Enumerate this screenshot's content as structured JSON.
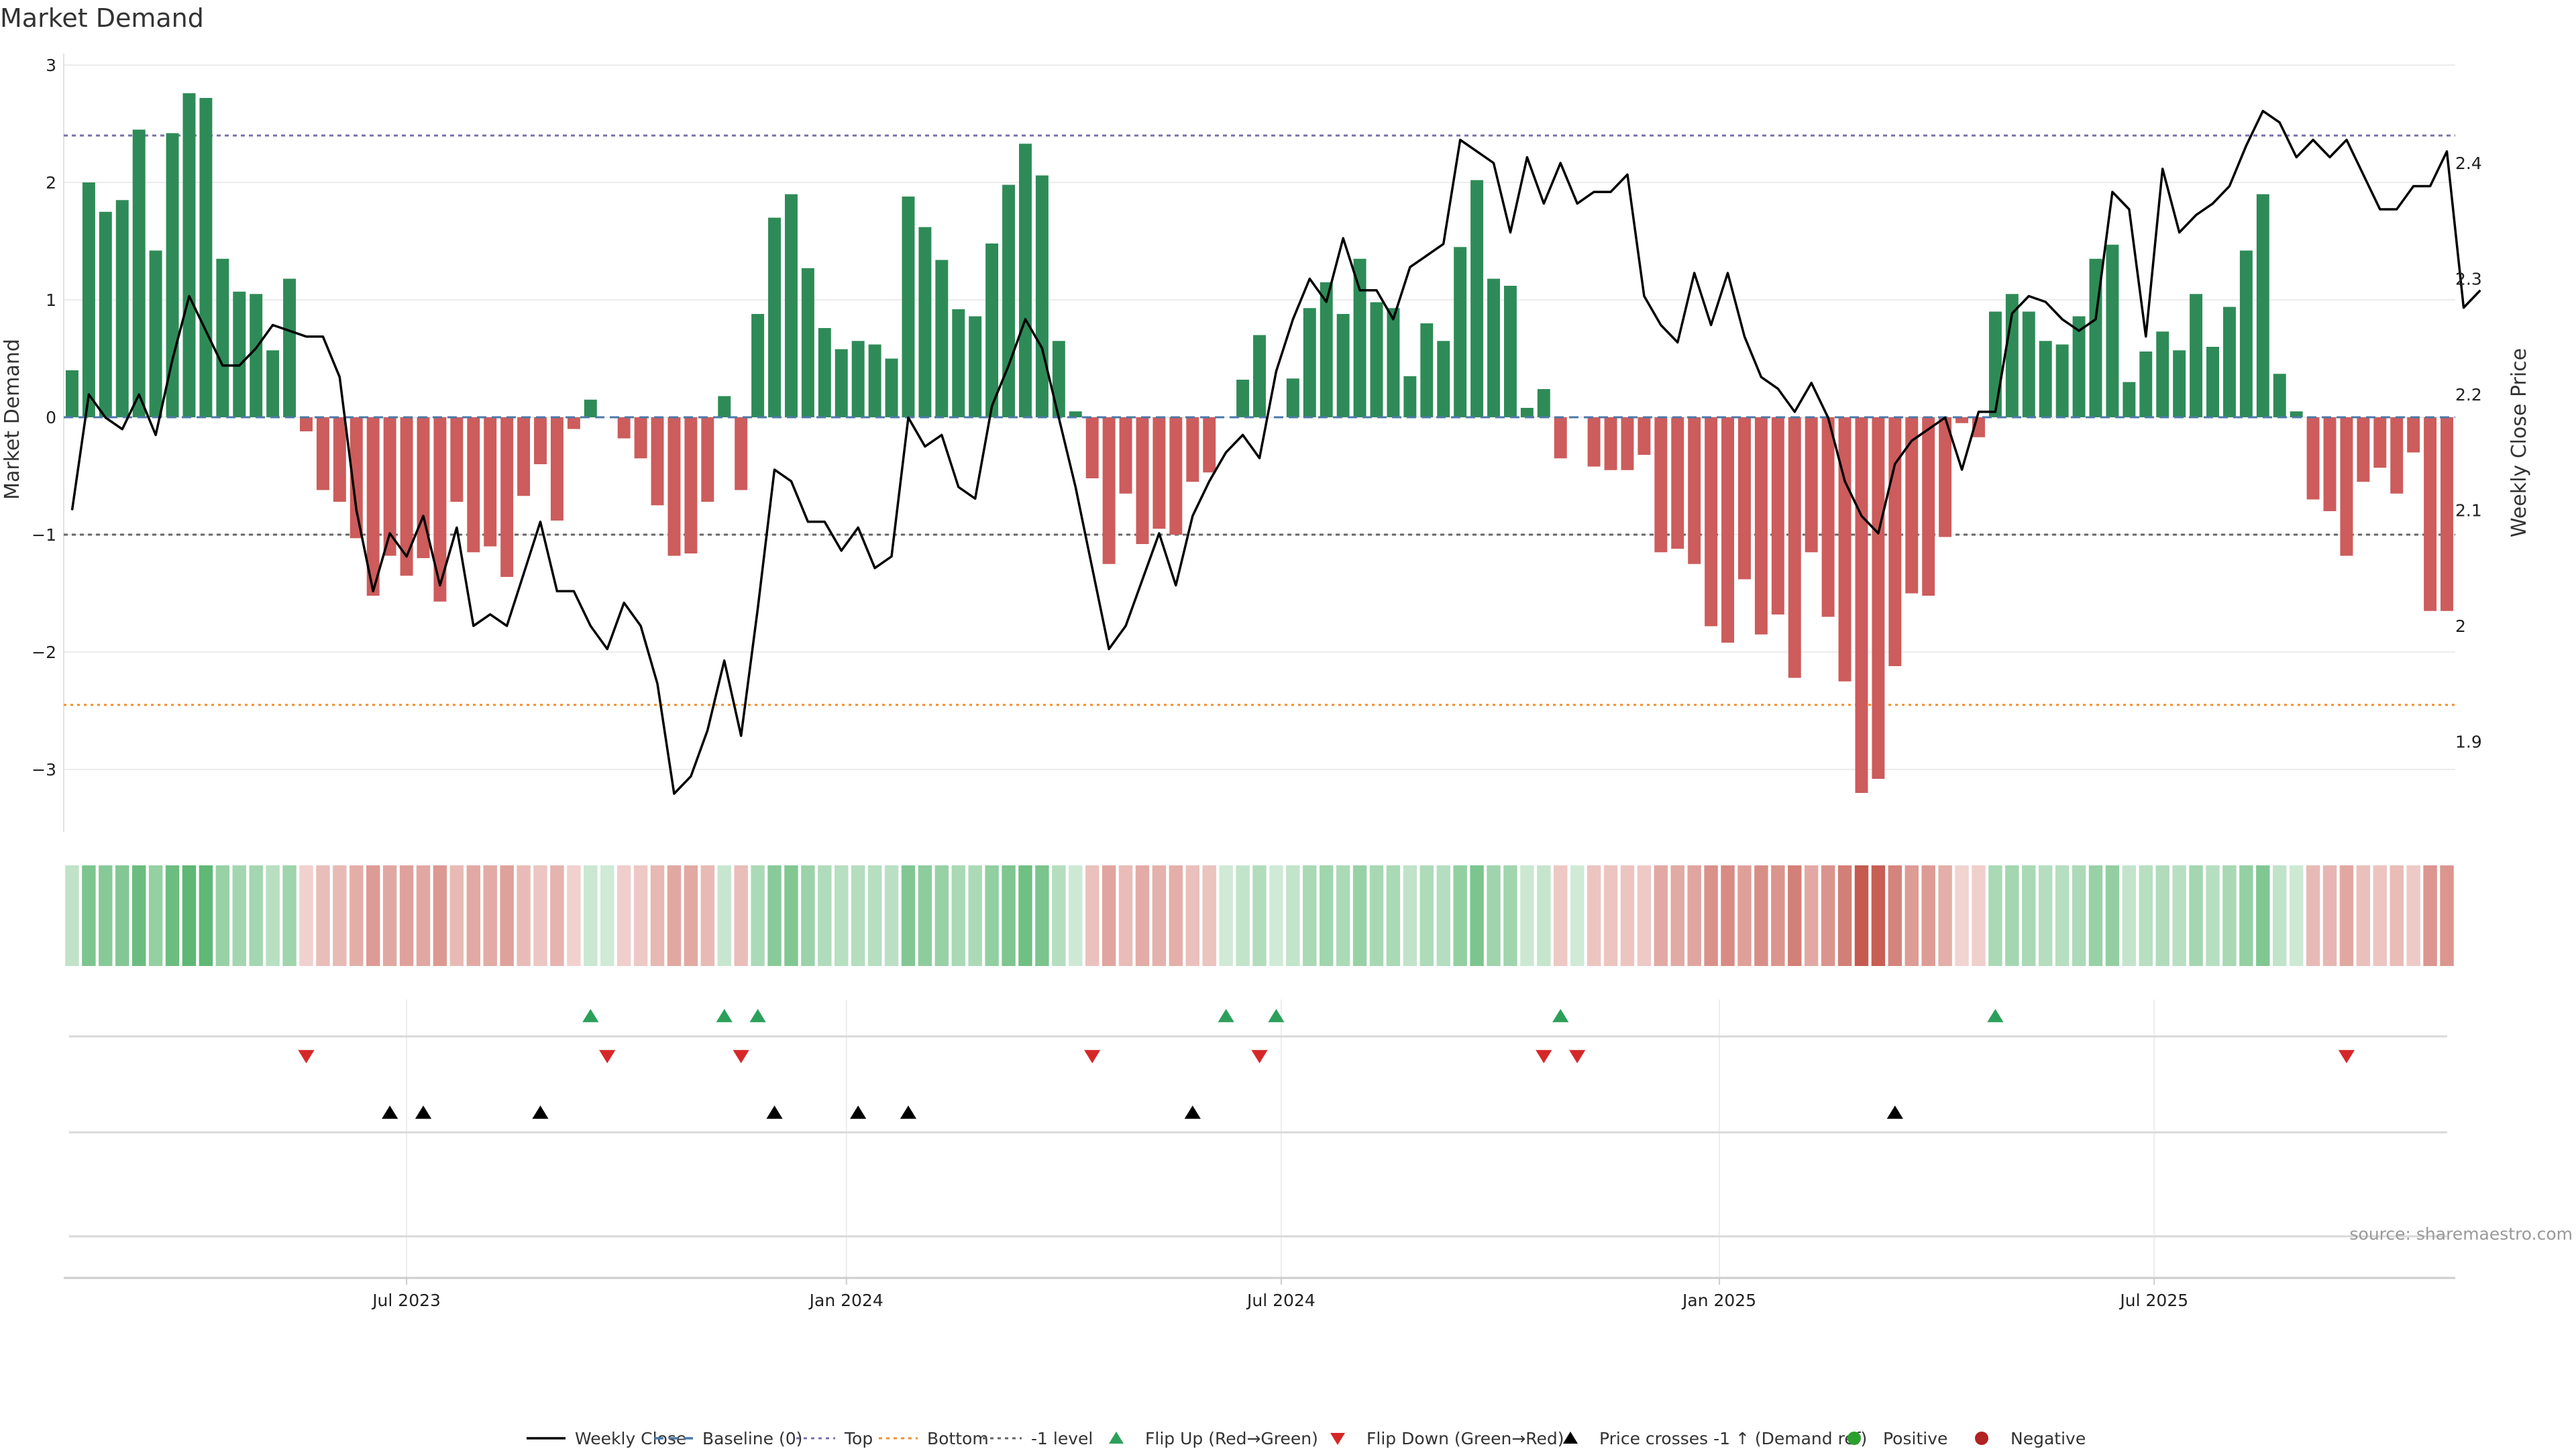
{
  "chart_data": {
    "type": "bar",
    "title": "Market Demand",
    "ylabel": "Market Demand",
    "y2label": "Weekly Close Price",
    "ylim": [
      -3.5,
      3
    ],
    "y_ticks": [
      "3",
      "2",
      "1",
      "0",
      "−1",
      "−2",
      "−3"
    ],
    "y2lim": [
      1.85,
      2.465
    ],
    "y2_ticks": [
      "2.4",
      "2.3",
      "2.2",
      "2.1",
      "2",
      "1.9"
    ],
    "x_tick_labels": [
      "Jul 2023",
      "Jan 2024",
      "Jul 2024",
      "Jan 2025",
      "Jul 2025"
    ],
    "x_tick_weeks": [
      20,
      46.3,
      72.3,
      98.5,
      124.5
    ],
    "levels": {
      "top": 2.4,
      "bottom": -2.45,
      "minus_one": -1
    },
    "demand": [
      0.4,
      2,
      1.75,
      1.85,
      2.45,
      1.42,
      2.42,
      2.76,
      2.72,
      1.35,
      1.07,
      1.05,
      0.57,
      1.18,
      -0.12,
      -0.62,
      -0.72,
      -1.03,
      -1.52,
      -1.18,
      -1.35,
      -1.2,
      -1.57,
      -0.72,
      -1.15,
      -1.1,
      -1.36,
      -0.67,
      -0.4,
      -0.88,
      -0.1,
      0.15,
      0,
      -0.18,
      -0.35,
      -0.75,
      -1.18,
      -1.16,
      -0.72,
      0.18,
      -0.62,
      0.88,
      1.7,
      1.9,
      1.27,
      0.76,
      0.58,
      0.65,
      0.62,
      0.5,
      1.88,
      1.62,
      1.34,
      0.92,
      0.86,
      1.48,
      1.98,
      2.33,
      2.06,
      0.65,
      0.05,
      -0.52,
      -1.25,
      -0.65,
      -1.08,
      -0.95,
      -1.0,
      -0.55,
      -0.47,
      0,
      0.32,
      0.7,
      0,
      0.33,
      0.93,
      1.15,
      0.88,
      1.35,
      0.98,
      0.93,
      0.35,
      0.8,
      0.65,
      1.45,
      2.02,
      1.18,
      1.12,
      0.08,
      0.24,
      -0.35,
      0,
      -0.42,
      -0.45,
      -0.45,
      -0.32,
      -1.15,
      -1.12,
      -1.25,
      -1.78,
      -1.92,
      -1.38,
      -1.85,
      -1.68,
      -2.22,
      -1.15,
      -1.7,
      -2.25,
      -3.2,
      -3.08,
      -2.12,
      -1.5,
      -1.52,
      -1.02,
      -0.05,
      -0.17,
      0.9,
      1.05,
      0.9,
      0.65,
      0.62,
      0.86,
      1.35,
      1.47,
      0.3,
      0.56,
      0.73,
      0.57,
      1.05,
      0.6,
      0.94,
      1.42,
      1.9,
      0.37,
      0.05,
      -0.7,
      -0.8,
      -1.18,
      -0.55,
      -0.43,
      -0.65,
      -0.3,
      -1.65,
      -1.65
    ],
    "price": [
      2.1,
      2.2,
      2.18,
      2.17,
      2.2,
      2.165,
      2.23,
      2.285,
      2.255,
      2.225,
      2.225,
      2.24,
      2.26,
      2.255,
      2.25,
      2.25,
      2.215,
      2.1,
      2.03,
      2.08,
      2.06,
      2.095,
      2.035,
      2.085,
      2.0,
      2.01,
      2.0,
      2.045,
      2.09,
      2.03,
      2.03,
      2.0,
      1.98,
      2.02,
      2.0,
      1.95,
      1.855,
      1.87,
      1.91,
      1.97,
      1.905,
      2.015,
      2.135,
      2.125,
      2.09,
      2.09,
      2.065,
      2.085,
      2.05,
      2.06,
      2.18,
      2.155,
      2.165,
      2.12,
      2.11,
      2.19,
      2.225,
      2.265,
      2.24,
      2.18,
      2.12,
      2.05,
      1.98,
      2.0,
      2.04,
      2.08,
      2.035,
      2.095,
      2.125,
      2.15,
      2.165,
      2.145,
      2.22,
      2.265,
      2.3,
      2.28,
      2.335,
      2.29,
      2.29,
      2.265,
      2.31,
      2.32,
      2.33,
      2.42,
      2.41,
      2.4,
      2.34,
      2.405,
      2.365,
      2.4,
      2.365,
      2.375,
      2.375,
      2.39,
      2.285,
      2.26,
      2.245,
      2.305,
      2.26,
      2.305,
      2.25,
      2.215,
      2.205,
      2.185,
      2.21,
      2.18,
      2.125,
      2.095,
      2.08,
      2.14,
      2.16,
      2.17,
      2.18,
      2.135,
      2.185,
      2.185,
      2.27,
      2.285,
      2.28,
      2.265,
      2.255,
      2.265,
      2.375,
      2.36,
      2.25,
      2.395,
      2.34,
      2.355,
      2.365,
      2.38,
      2.415,
      2.445,
      2.435,
      2.405,
      2.42,
      2.405,
      2.42,
      2.39,
      2.36,
      2.36,
      2.38,
      2.38,
      2.41,
      2.275,
      2.29
    ],
    "flip_up_weeks": [
      31,
      39,
      41,
      69,
      72,
      89,
      115
    ],
    "flip_down_weeks": [
      14,
      32,
      40,
      61,
      71,
      88,
      90,
      136
    ],
    "price_cross_weeks": [
      19,
      21,
      28,
      42,
      47,
      50,
      67,
      109
    ],
    "legend": [
      {
        "label": "Weekly Close",
        "symbol": "line",
        "color": "#000000"
      },
      {
        "label": "Baseline (0)",
        "symbol": "dash",
        "color": "#4c78a8"
      },
      {
        "label": "Top",
        "symbol": "dot",
        "color": "#7b6fa8"
      },
      {
        "label": "Bottom",
        "symbol": "dot",
        "color": "#f28e2b"
      },
      {
        "label": "-1 level",
        "symbol": "dot",
        "color": "#666666"
      },
      {
        "label": "Flip Up (Red→Green)",
        "symbol": "tri-up",
        "color": "#2ca05a"
      },
      {
        "label": "Flip Down (Green→Red)",
        "symbol": "tri-down",
        "color": "#d62728"
      },
      {
        "label": "Price crosses -1 ↑ (Demand ref)",
        "symbol": "tri-up",
        "color": "#000000"
      },
      {
        "label": "Positive",
        "symbol": "circle",
        "color": "#2ca02c"
      },
      {
        "label": "Negative",
        "symbol": "circle",
        "color": "#b22222"
      }
    ],
    "source": "source: sharemaestro.com",
    "colors": {
      "positive": "#2e8b57",
      "negative": "#cd5c5c",
      "price_line": "#000000",
      "flip_up": "#2ca05a",
      "flip_down": "#d62728",
      "price_cross": "#000000"
    }
  }
}
